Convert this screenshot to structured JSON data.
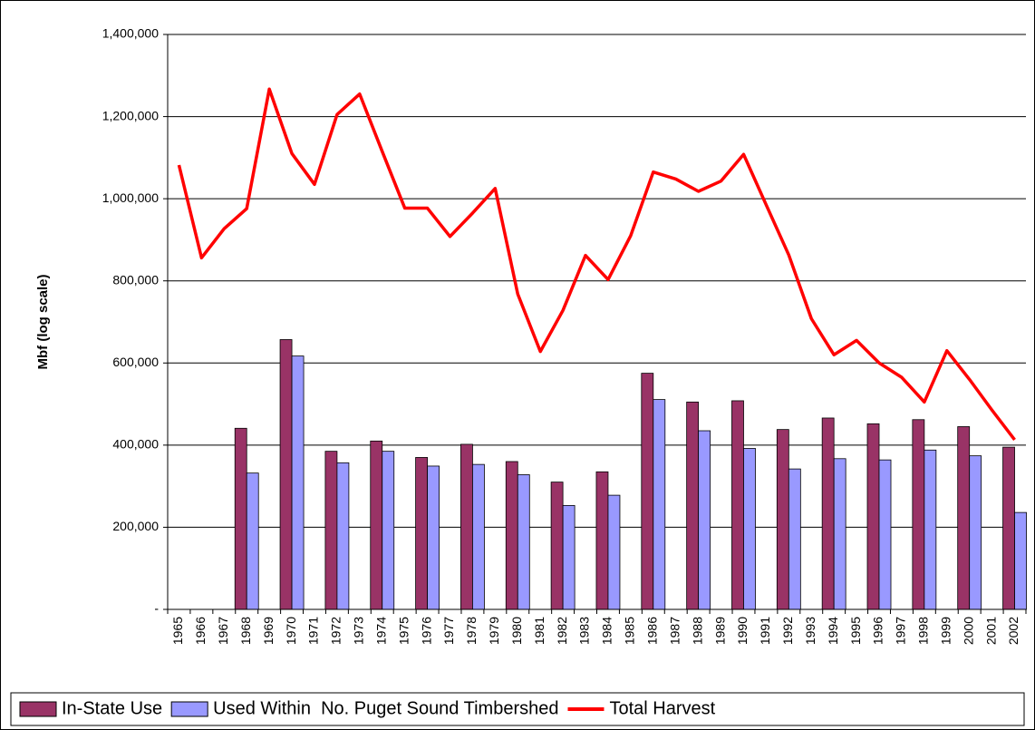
{
  "chart_data": {
    "type": "bar-line",
    "y_axis_label": "Mbf (log scale)",
    "categories": [
      "1965",
      "1966",
      "1967",
      "1968",
      "1969",
      "1970",
      "1971",
      "1972",
      "1973",
      "1974",
      "1975",
      "1976",
      "1977",
      "1978",
      "1979",
      "1980",
      "1981",
      "1982",
      "1983",
      "1984",
      "1985",
      "1986",
      "1987",
      "1988",
      "1989",
      "1990",
      "1991",
      "1992",
      "1993",
      "1994",
      "1995",
      "1996",
      "1997",
      "1998",
      "1999",
      "2000",
      "2001",
      "2002"
    ],
    "series": [
      {
        "name": "In-State Use",
        "type": "bar",
        "color": "#993366",
        "values": [
          null,
          null,
          null,
          441000,
          null,
          657000,
          null,
          385000,
          null,
          410000,
          null,
          370000,
          null,
          402000,
          null,
          360000,
          null,
          310000,
          null,
          335000,
          null,
          575000,
          null,
          505000,
          null,
          508000,
          null,
          438000,
          null,
          466000,
          null,
          452000,
          null,
          462000,
          null,
          445000,
          null,
          395000
        ]
      },
      {
        "name": "Used Within  No. Puget Sound Timbershed",
        "type": "bar",
        "color": "#9999ff",
        "values": [
          null,
          null,
          null,
          332000,
          null,
          617000,
          null,
          357000,
          null,
          385000,
          null,
          349000,
          null,
          353000,
          null,
          328000,
          null,
          253000,
          null,
          278000,
          null,
          511000,
          null,
          435000,
          null,
          392000,
          null,
          342000,
          null,
          367000,
          null,
          364000,
          null,
          388000,
          null,
          374000,
          null,
          236000
        ]
      },
      {
        "name": "Total Harvest",
        "type": "line",
        "color": "#ff0000",
        "values": [
          1082000,
          856000,
          927000,
          976000,
          1267000,
          1110000,
          1035000,
          1205000,
          1255000,
          1115000,
          977000,
          977000,
          908000,
          965000,
          1025000,
          768000,
          628000,
          728000,
          862000,
          803000,
          910000,
          1065000,
          1048000,
          1018000,
          1043000,
          1108000,
          985000,
          863000,
          708000,
          620000,
          655000,
          600000,
          565000,
          505000,
          630000,
          560000,
          485000,
          413000
        ]
      }
    ],
    "ylim": [
      0,
      1400000
    ],
    "yticks": [
      {
        "value": 0,
        "label": "-"
      },
      {
        "value": 200000,
        "label": "200,000"
      },
      {
        "value": 400000,
        "label": "400,000"
      },
      {
        "value": 600000,
        "label": "600,000"
      },
      {
        "value": 800000,
        "label": "800,000"
      },
      {
        "value": 1000000,
        "label": "1,000,000"
      },
      {
        "value": 1200000,
        "label": "1,200,000"
      },
      {
        "value": 1400000,
        "label": "1,400,000"
      }
    ],
    "grid": true,
    "legend": "bottom"
  }
}
